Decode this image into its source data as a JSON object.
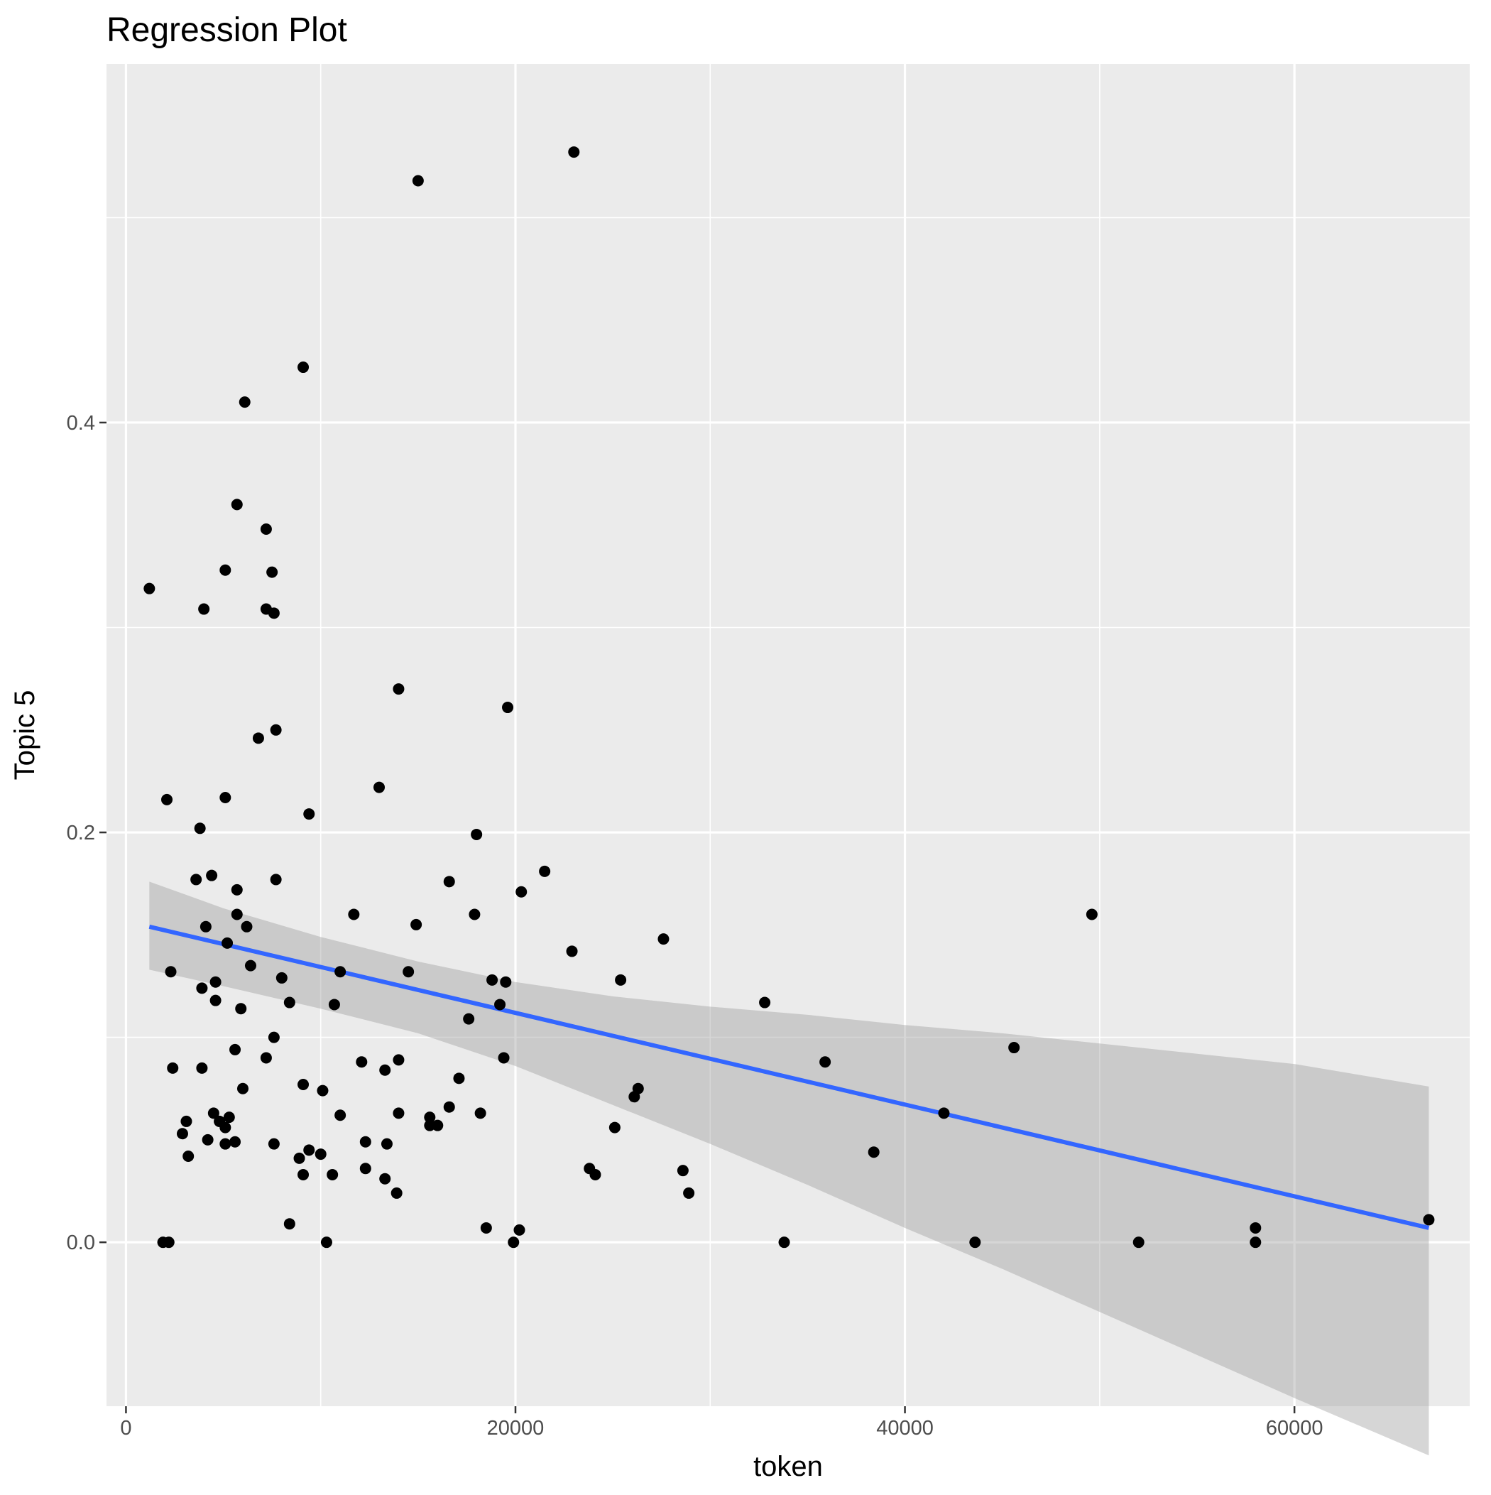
{
  "chart_data": {
    "type": "scatter",
    "title": "Regression Plot",
    "xlabel": "token",
    "ylabel": "Topic 5",
    "xlim": [
      -1000,
      69000
    ],
    "ylim": [
      -0.08,
      0.575
    ],
    "x_ticks": [
      0,
      20000,
      40000,
      60000
    ],
    "x_tick_labels": [
      "0",
      "20000",
      "40000",
      "60000"
    ],
    "x_minor_ticks": [
      10000,
      30000,
      50000
    ],
    "y_ticks": [
      0.0,
      0.2,
      0.4
    ],
    "y_tick_labels": [
      "0.0",
      "0.2",
      "0.4"
    ],
    "y_minor_ticks": [
      0.1,
      0.3,
      0.5
    ],
    "grid": true,
    "legend": "none",
    "colors": {
      "panel": "#ebebeb",
      "grid": "#ffffff",
      "points": "#000000",
      "line": "#3366ff",
      "band": "#999999"
    },
    "series": [
      {
        "type": "scatter",
        "points": [
          [
            15000,
            0.518
          ],
          [
            23000,
            0.532
          ],
          [
            9100,
            0.427
          ],
          [
            6100,
            0.41
          ],
          [
            5700,
            0.36
          ],
          [
            7200,
            0.348
          ],
          [
            5100,
            0.328
          ],
          [
            7500,
            0.327
          ],
          [
            1200,
            0.319
          ],
          [
            4000,
            0.309
          ],
          [
            7200,
            0.309
          ],
          [
            7600,
            0.307
          ],
          [
            14000,
            0.27
          ],
          [
            19600,
            0.261
          ],
          [
            6800,
            0.246
          ],
          [
            7700,
            0.25
          ],
          [
            13000,
            0.222
          ],
          [
            2100,
            0.216
          ],
          [
            5100,
            0.217
          ],
          [
            9400,
            0.209
          ],
          [
            3800,
            0.202
          ],
          [
            18000,
            0.199
          ],
          [
            3600,
            0.177
          ],
          [
            4400,
            0.179
          ],
          [
            7700,
            0.177
          ],
          [
            21500,
            0.181
          ],
          [
            5700,
            0.172
          ],
          [
            16600,
            0.176
          ],
          [
            20300,
            0.171
          ],
          [
            5700,
            0.16
          ],
          [
            11700,
            0.16
          ],
          [
            17900,
            0.16
          ],
          [
            49600,
            0.16
          ],
          [
            4100,
            0.154
          ],
          [
            6200,
            0.154
          ],
          [
            14900,
            0.155
          ],
          [
            27600,
            0.148
          ],
          [
            5200,
            0.146
          ],
          [
            22900,
            0.142
          ],
          [
            6400,
            0.135
          ],
          [
            2300,
            0.132
          ],
          [
            11000,
            0.132
          ],
          [
            14500,
            0.132
          ],
          [
            8000,
            0.129
          ],
          [
            18800,
            0.128
          ],
          [
            19500,
            0.127
          ],
          [
            25400,
            0.128
          ],
          [
            4600,
            0.127
          ],
          [
            3900,
            0.124
          ],
          [
            4600,
            0.118
          ],
          [
            8400,
            0.117
          ],
          [
            10700,
            0.116
          ],
          [
            19200,
            0.116
          ],
          [
            32800,
            0.117
          ],
          [
            5900,
            0.114
          ],
          [
            17600,
            0.109
          ],
          [
            7600,
            0.1
          ],
          [
            45600,
            0.095
          ],
          [
            5600,
            0.094
          ],
          [
            7200,
            0.09
          ],
          [
            12100,
            0.088
          ],
          [
            14000,
            0.089
          ],
          [
            19400,
            0.09
          ],
          [
            35900,
            0.088
          ],
          [
            2400,
            0.085
          ],
          [
            3900,
            0.085
          ],
          [
            13300,
            0.084
          ],
          [
            17100,
            0.08
          ],
          [
            9100,
            0.077
          ],
          [
            10100,
            0.074
          ],
          [
            6000,
            0.075
          ],
          [
            26300,
            0.075
          ],
          [
            26100,
            0.071
          ],
          [
            4500,
            0.063
          ],
          [
            5300,
            0.061
          ],
          [
            11000,
            0.062
          ],
          [
            14000,
            0.063
          ],
          [
            15600,
            0.061
          ],
          [
            16600,
            0.066
          ],
          [
            18200,
            0.063
          ],
          [
            42000,
            0.063
          ],
          [
            3100,
            0.059
          ],
          [
            4800,
            0.059
          ],
          [
            5100,
            0.056
          ],
          [
            2900,
            0.053
          ],
          [
            15600,
            0.057
          ],
          [
            16000,
            0.057
          ],
          [
            25100,
            0.056
          ],
          [
            4200,
            0.05
          ],
          [
            5100,
            0.048
          ],
          [
            5600,
            0.049
          ],
          [
            7600,
            0.048
          ],
          [
            12300,
            0.049
          ],
          [
            13400,
            0.048
          ],
          [
            9400,
            0.045
          ],
          [
            10000,
            0.043
          ],
          [
            38400,
            0.044
          ],
          [
            3200,
            0.042
          ],
          [
            8900,
            0.041
          ],
          [
            12300,
            0.036
          ],
          [
            23800,
            0.036
          ],
          [
            24100,
            0.033
          ],
          [
            28600,
            0.035
          ],
          [
            9100,
            0.033
          ],
          [
            10600,
            0.033
          ],
          [
            13300,
            0.031
          ],
          [
            13900,
            0.024
          ],
          [
            28900,
            0.024
          ],
          [
            8400,
            0.009
          ],
          [
            18500,
            0.007
          ],
          [
            20200,
            0.006
          ],
          [
            58000,
            0.007
          ],
          [
            66900,
            0.011
          ],
          [
            1900,
            0.0
          ],
          [
            2200,
            0.0
          ],
          [
            10300,
            0.0
          ],
          [
            19900,
            0.0
          ],
          [
            33800,
            0.0
          ],
          [
            43600,
            0.0
          ],
          [
            52000,
            0.0
          ],
          [
            58000,
            0.0
          ]
        ]
      },
      {
        "type": "line",
        "method": "lm",
        "points": [
          [
            1200,
            0.154
          ],
          [
            66900,
            0.007
          ]
        ],
        "band_x": [
          1200,
          5000,
          10000,
          15000,
          20000,
          25000,
          30000,
          35000,
          40000,
          45000,
          50000,
          55000,
          60000,
          66900
        ],
        "band_lower": [
          0.133,
          0.125,
          0.114,
          0.102,
          0.086,
          0.067,
          0.048,
          0.028,
          0.007,
          -0.013,
          -0.034,
          -0.055,
          -0.076,
          -0.104
        ],
        "band_upper": [
          0.176,
          0.163,
          0.149,
          0.137,
          0.127,
          0.12,
          0.115,
          0.111,
          0.106,
          0.102,
          0.097,
          0.092,
          0.087,
          0.076
        ]
      }
    ]
  }
}
